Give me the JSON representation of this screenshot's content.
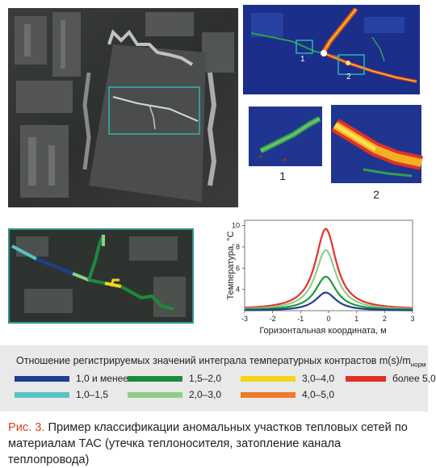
{
  "image_labels": {
    "inset_1": "1",
    "inset_2": "2",
    "marker_1": "1",
    "marker_2": "2"
  },
  "chart_data": {
    "type": "line",
    "xlabel": "Горизонтальная координата, м",
    "ylabel": "Температура, °С",
    "xlim": [
      -3,
      3
    ],
    "ylim": [
      2,
      10.5
    ],
    "xticks": [
      "-3",
      "-2",
      "-1",
      "0",
      "1",
      "2",
      "3"
    ],
    "yticks": [
      "4",
      "6",
      "8",
      "10"
    ],
    "grid": false,
    "series": [
      {
        "color": "#e8312a",
        "peak": 9.7,
        "base": 2.1,
        "center": -0.1,
        "width": 0.45
      },
      {
        "color": "#8fce8f",
        "peak": 7.7,
        "base": 2.05,
        "center": -0.1,
        "width": 0.45
      },
      {
        "color": "#1e9a3e",
        "peak": 5.2,
        "base": 2.05,
        "center": -0.1,
        "width": 0.45
      },
      {
        "color": "#243d8f",
        "peak": 3.7,
        "base": 2.0,
        "center": -0.1,
        "width": 0.45
      }
    ]
  },
  "legend": {
    "title": "Отношение регистрируемых значений интеграла температурных контрастов m(s)/m",
    "title_sub": "норм",
    "items": [
      {
        "label": "1,0 и менее",
        "color": "#1d3f91"
      },
      {
        "label": "1,0–1,5",
        "color": "#57c3c8"
      },
      {
        "label": "1,5–2,0",
        "color": "#1c8b3c"
      },
      {
        "label": "2,0–3,0",
        "color": "#8fce8a"
      },
      {
        "label": "3,0–4,0",
        "color": "#f3d51c"
      },
      {
        "label": "4,0–5,0",
        "color": "#ef7a2a"
      },
      {
        "label": "более 5,0",
        "color": "#e52d26"
      }
    ]
  },
  "caption": {
    "fig_label": "Рис. 3.",
    "text": " Пример классификации аномальных участков тепловых сетей по материалам ТАС (утечка теплоносителя, затопление канала теплопровода)"
  }
}
